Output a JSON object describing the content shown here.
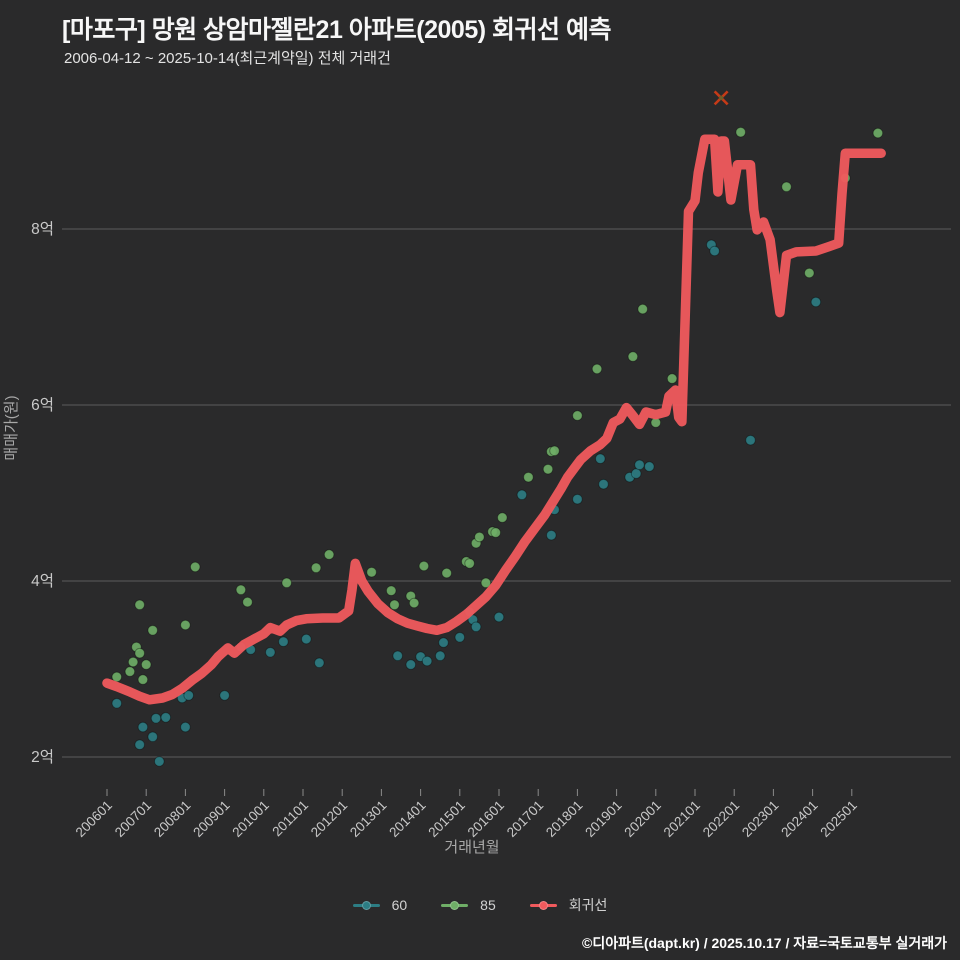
{
  "header": {
    "title": "[마포구] 망원 상암마젤란21 아파트(2005) 회귀선 예측",
    "subtitle": "2006-04-12 ~ 2025-10-14(최근계약일) 전체 거래건"
  },
  "footer": {
    "credit": "©디아파트(dapt.kr) / 2025.10.17 / 자료=국토교통부 실거래가"
  },
  "colors": {
    "background": "#2a2a2b",
    "gridline": "#5c5c5c",
    "tick_text": "#c9c9c9",
    "axis_title_text": "#a8a8a8",
    "series_60": "#2c7d84",
    "series_85": "#6fae67",
    "regression": "#f05a5d",
    "x_marker": "#c63a17"
  },
  "legend": [
    {
      "label": "60",
      "color": "#2c7d84"
    },
    {
      "label": "85",
      "color": "#6fae67"
    },
    {
      "label": "회귀선",
      "color": "#f05a5d"
    }
  ],
  "chart_data": {
    "type": "scatter",
    "title": "[마포구] 망원 상암마젤란21 아파트(2005) 회귀선 예측",
    "xlabel": "거래년월",
    "ylabel": "매매가(원)",
    "price_unit": "억원",
    "x_ticks": [
      "200601",
      "200701",
      "200801",
      "200901",
      "201001",
      "201101",
      "201201",
      "201301",
      "201401",
      "201501",
      "201601",
      "201701",
      "201801",
      "201901",
      "202001",
      "202101",
      "202201",
      "202301",
      "202401",
      "202501"
    ],
    "y_ticks": [
      {
        "label": "2억",
        "value": 2
      },
      {
        "label": "4억",
        "value": 4
      },
      {
        "label": "6억",
        "value": 6
      },
      {
        "label": "8억",
        "value": 8
      }
    ],
    "xlim_years": [
      2005.6,
      2026.4
    ],
    "ylim_eok": [
      1.5,
      9.95
    ],
    "grid": "horizontal-only",
    "legend_position": "bottom-center",
    "series": [
      {
        "name": "60",
        "type": "scatter",
        "color": "#2c7d84",
        "points": [
          [
            "2006-04",
            2.61
          ],
          [
            "2006-11",
            2.14
          ],
          [
            "2006-12",
            2.34
          ],
          [
            "2007-03",
            2.23
          ],
          [
            "2007-04",
            2.44
          ],
          [
            "2007-05",
            1.95
          ],
          [
            "2007-07",
            2.45
          ],
          [
            "2007-12",
            2.67
          ],
          [
            "2008-01",
            2.34
          ],
          [
            "2008-02",
            2.7
          ],
          [
            "2009-01",
            2.7
          ],
          [
            "2009-06",
            3.25
          ],
          [
            "2009-09",
            3.22
          ],
          [
            "2010-03",
            3.19
          ],
          [
            "2010-07",
            3.31
          ],
          [
            "2011-02",
            3.34
          ],
          [
            "2011-06",
            3.07
          ],
          [
            "2013-06",
            3.15
          ],
          [
            "2013-10",
            3.05
          ],
          [
            "2014-01",
            3.14
          ],
          [
            "2014-03",
            3.09
          ],
          [
            "2014-07",
            3.15
          ],
          [
            "2014-08",
            3.3
          ],
          [
            "2015-01",
            3.36
          ],
          [
            "2015-04",
            3.65
          ],
          [
            "2015-05",
            3.56
          ],
          [
            "2015-06",
            3.48
          ],
          [
            "2016-01",
            3.59
          ],
          [
            "2016-08",
            4.98
          ],
          [
            "2017-05",
            4.52
          ],
          [
            "2017-06",
            4.81
          ],
          [
            "2018-01",
            4.93
          ],
          [
            "2018-08",
            5.39
          ],
          [
            "2018-09",
            5.1
          ],
          [
            "2019-05",
            5.18
          ],
          [
            "2019-07",
            5.22
          ],
          [
            "2019-08",
            5.32
          ],
          [
            "2019-11",
            5.3
          ],
          [
            "2021-06",
            7.82
          ],
          [
            "2021-07",
            7.75
          ],
          [
            "2022-06",
            5.6
          ],
          [
            "2024-02",
            7.17
          ]
        ]
      },
      {
        "name": "85",
        "type": "scatter",
        "color": "#6fae67",
        "points": [
          [
            "2006-04",
            2.91
          ],
          [
            "2006-08",
            2.97
          ],
          [
            "2006-09",
            3.08
          ],
          [
            "2006-10",
            3.25
          ],
          [
            "2006-11",
            3.73
          ],
          [
            "2006-11",
            3.18
          ],
          [
            "2006-12",
            2.88
          ],
          [
            "2007-01",
            3.05
          ],
          [
            "2007-03",
            3.44
          ],
          [
            "2008-01",
            3.5
          ],
          [
            "2008-04",
            4.16
          ],
          [
            "2009-06",
            3.9
          ],
          [
            "2009-08",
            3.76
          ],
          [
            "2010-08",
            3.98
          ],
          [
            "2011-05",
            4.15
          ],
          [
            "2011-09",
            4.3
          ],
          [
            "2012-10",
            4.1
          ],
          [
            "2013-04",
            3.89
          ],
          [
            "2013-05",
            3.73
          ],
          [
            "2013-10",
            3.83
          ],
          [
            "2013-11",
            3.75
          ],
          [
            "2014-02",
            4.17
          ],
          [
            "2014-09",
            4.09
          ],
          [
            "2015-03",
            4.22
          ],
          [
            "2015-04",
            4.2
          ],
          [
            "2015-06",
            4.43
          ],
          [
            "2015-07",
            4.5
          ],
          [
            "2015-09",
            3.98
          ],
          [
            "2015-11",
            4.56
          ],
          [
            "2015-12",
            4.55
          ],
          [
            "2016-02",
            4.72
          ],
          [
            "2016-10",
            5.18
          ],
          [
            "2017-04",
            5.27
          ],
          [
            "2017-05",
            5.47
          ],
          [
            "2017-06",
            5.48
          ],
          [
            "2018-01",
            5.88
          ],
          [
            "2018-07",
            6.41
          ],
          [
            "2019-06",
            6.55
          ],
          [
            "2019-09",
            7.09
          ],
          [
            "2020-01",
            5.8
          ],
          [
            "2020-06",
            6.3
          ],
          [
            "2022-03",
            9.1
          ],
          [
            "2023-05",
            8.48
          ],
          [
            "2023-12",
            7.5
          ],
          [
            "2024-11",
            8.58
          ],
          [
            "2025-09",
            9.09
          ]
        ]
      },
      {
        "name": "회귀선",
        "type": "line",
        "color": "#f05a5d",
        "points": [
          [
            "2006-01",
            2.84
          ],
          [
            "2006-04",
            2.8
          ],
          [
            "2006-08",
            2.74
          ],
          [
            "2006-11",
            2.69
          ],
          [
            "2007-02",
            2.65
          ],
          [
            "2007-06",
            2.67
          ],
          [
            "2007-09",
            2.71
          ],
          [
            "2007-12",
            2.78
          ],
          [
            "2008-03",
            2.87
          ],
          [
            "2008-06",
            2.95
          ],
          [
            "2008-09",
            3.05
          ],
          [
            "2008-11",
            3.14
          ],
          [
            "2009-02",
            3.24
          ],
          [
            "2009-04",
            3.18
          ],
          [
            "2009-07",
            3.28
          ],
          [
            "2009-10",
            3.34
          ],
          [
            "2010-01",
            3.4
          ],
          [
            "2010-03",
            3.47
          ],
          [
            "2010-06",
            3.43
          ],
          [
            "2010-08",
            3.5
          ],
          [
            "2010-11",
            3.55
          ],
          [
            "2011-02",
            3.57
          ],
          [
            "2011-07",
            3.58
          ],
          [
            "2011-12",
            3.58
          ],
          [
            "2012-03",
            3.66
          ],
          [
            "2012-04",
            3.9
          ],
          [
            "2012-05",
            4.2
          ],
          [
            "2012-07",
            4.0
          ],
          [
            "2012-09",
            3.88
          ],
          [
            "2012-12",
            3.74
          ],
          [
            "2013-03",
            3.64
          ],
          [
            "2013-06",
            3.57
          ],
          [
            "2013-09",
            3.52
          ],
          [
            "2013-12",
            3.49
          ],
          [
            "2014-03",
            3.46
          ],
          [
            "2014-06",
            3.44
          ],
          [
            "2014-09",
            3.47
          ],
          [
            "2014-12",
            3.54
          ],
          [
            "2015-03",
            3.62
          ],
          [
            "2015-06",
            3.72
          ],
          [
            "2015-09",
            3.82
          ],
          [
            "2015-12",
            3.95
          ],
          [
            "2016-03",
            4.12
          ],
          [
            "2016-06",
            4.28
          ],
          [
            "2016-09",
            4.45
          ],
          [
            "2016-12",
            4.6
          ],
          [
            "2017-03",
            4.75
          ],
          [
            "2017-06",
            4.93
          ],
          [
            "2017-08",
            5.05
          ],
          [
            "2017-10",
            5.18
          ],
          [
            "2017-12",
            5.28
          ],
          [
            "2018-02",
            5.38
          ],
          [
            "2018-05",
            5.48
          ],
          [
            "2018-08",
            5.55
          ],
          [
            "2018-10",
            5.62
          ],
          [
            "2018-12",
            5.8
          ],
          [
            "2019-02",
            5.84
          ],
          [
            "2019-04",
            5.97
          ],
          [
            "2019-06",
            5.88
          ],
          [
            "2019-08",
            5.78
          ],
          [
            "2019-10",
            5.92
          ],
          [
            "2020-01",
            5.89
          ],
          [
            "2020-04",
            5.92
          ],
          [
            "2020-05",
            6.1
          ],
          [
            "2020-07",
            6.17
          ],
          [
            "2020-08",
            5.86
          ],
          [
            "2020-09",
            5.81
          ],
          [
            "2020-10",
            7.0
          ],
          [
            "2020-11",
            8.2
          ],
          [
            "2021-01",
            8.32
          ],
          [
            "2021-02",
            8.64
          ],
          [
            "2021-04",
            9.02
          ],
          [
            "2021-07",
            9.02
          ],
          [
            "2021-08",
            8.42
          ],
          [
            "2021-09",
            9.0
          ],
          [
            "2021-10",
            9.0
          ],
          [
            "2021-12",
            8.33
          ],
          [
            "2022-02",
            8.73
          ],
          [
            "2022-06",
            8.73
          ],
          [
            "2022-07",
            8.22
          ],
          [
            "2022-08",
            7.99
          ],
          [
            "2022-10",
            8.08
          ],
          [
            "2022-12",
            7.88
          ],
          [
            "2023-02",
            7.3
          ],
          [
            "2023-03",
            7.05
          ],
          [
            "2023-05",
            7.7
          ],
          [
            "2023-08",
            7.74
          ],
          [
            "2024-02",
            7.75
          ],
          [
            "2024-06",
            7.8
          ],
          [
            "2024-09",
            7.84
          ],
          [
            "2024-10",
            8.4
          ],
          [
            "2024-11",
            8.86
          ],
          [
            "2025-10",
            8.86
          ]
        ]
      }
    ],
    "x_marker": {
      "date": "2021-09",
      "value": 9.49,
      "color": "#c63a17",
      "center_color": "#6e5b28"
    }
  }
}
